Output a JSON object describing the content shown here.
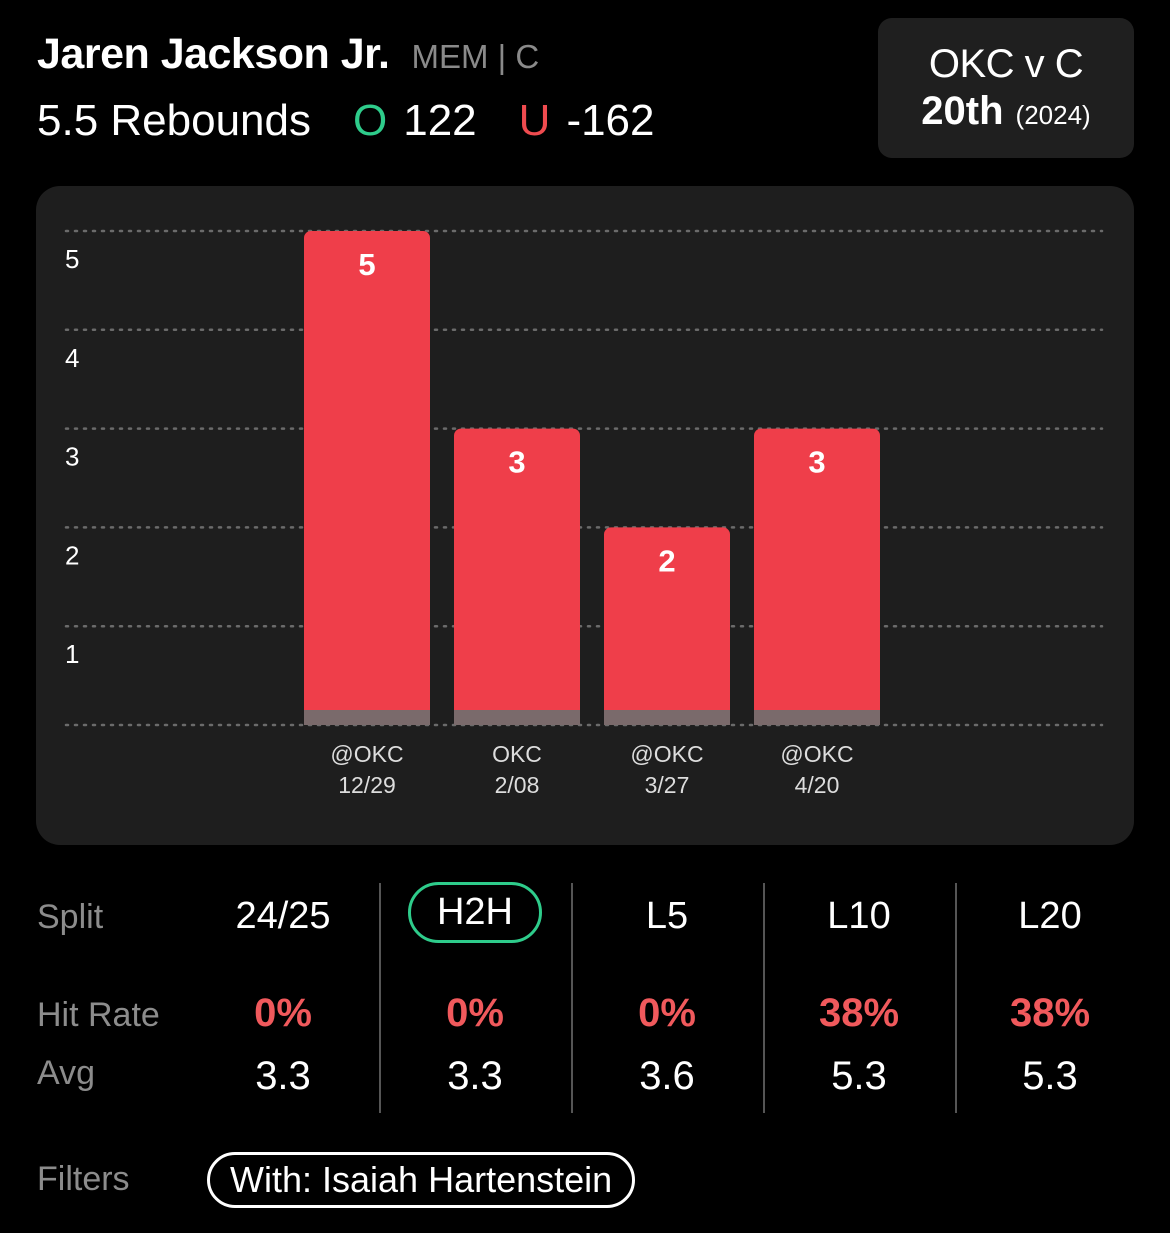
{
  "player": {
    "name": "Jaren Jackson Jr.",
    "meta": "MEM | C",
    "market": "5.5 Rebounds",
    "over_letter": "O",
    "over_odds": "122",
    "under_letter": "U",
    "under_odds": "-162"
  },
  "matchup": {
    "title": "OKC v C",
    "rank": "20th",
    "year": "(2024)"
  },
  "colors": {
    "bar": "#ef3e4a",
    "bar_base": "#7a6a6b",
    "over": "#2ecc8b",
    "under": "#ef4b4f",
    "hit_rate": "#f0595c"
  },
  "chart_data": {
    "type": "bar",
    "title": "",
    "xlabel": "",
    "ylabel": "",
    "ylim": [
      0,
      5
    ],
    "yticks": [
      1,
      2,
      3,
      4,
      5
    ],
    "grid": true,
    "categories": [
      {
        "opponent": "@OKC",
        "date": "12/29"
      },
      {
        "opponent": "OKC",
        "date": "2/08"
      },
      {
        "opponent": "@OKC",
        "date": "3/27"
      },
      {
        "opponent": "@OKC",
        "date": "4/20"
      }
    ],
    "values": [
      5,
      3,
      2,
      3
    ]
  },
  "splits": {
    "row_labels": {
      "split": "Split",
      "hit_rate": "Hit Rate",
      "avg": "Avg"
    },
    "columns": [
      {
        "label": "24/25",
        "hit_rate": "0%",
        "avg": "3.3",
        "selected": false
      },
      {
        "label": "H2H",
        "hit_rate": "0%",
        "avg": "3.3",
        "selected": true
      },
      {
        "label": "L5",
        "hit_rate": "0%",
        "avg": "3.6",
        "selected": false
      },
      {
        "label": "L10",
        "hit_rate": "38%",
        "avg": "5.3",
        "selected": false
      },
      {
        "label": "L20",
        "hit_rate": "38%",
        "avg": "5.3",
        "selected": false
      }
    ]
  },
  "filters": {
    "label": "Filters",
    "chip": "With: Isaiah Hartenstein"
  }
}
